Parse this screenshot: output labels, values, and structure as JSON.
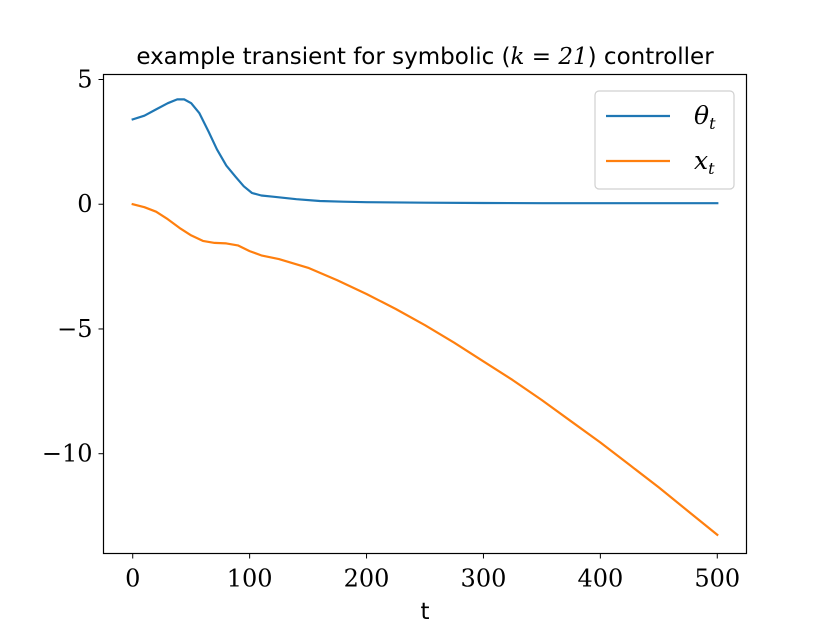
{
  "chart_data": {
    "type": "line",
    "title_parts": {
      "pre": "example transient for symbolic (",
      "math": "k = 21",
      "post": ") controller"
    },
    "xlabel": "t",
    "ylabel": "",
    "xlim": [
      -25,
      525
    ],
    "ylim": [
      -14.0,
      5.2
    ],
    "xticks": [
      0,
      100,
      200,
      300,
      400,
      500
    ],
    "xtick_labels": [
      "0",
      "100",
      "200",
      "300",
      "400",
      "500"
    ],
    "yticks": [
      5,
      0,
      -5,
      -10
    ],
    "ytick_labels": [
      "5",
      "0",
      "−5",
      "−10"
    ],
    "grid": false,
    "legend_position": "top-right",
    "series": [
      {
        "name": "θ",
        "subscript": "t",
        "color": "#1f77b4",
        "x": [
          0,
          10,
          20,
          30,
          38,
          44,
          50,
          57,
          65,
          72,
          80,
          88,
          95,
          102,
          110,
          120,
          140,
          160,
          180,
          200,
          250,
          300,
          350,
          400,
          450,
          500
        ],
        "y": [
          3.4,
          3.55,
          3.8,
          4.05,
          4.2,
          4.2,
          4.05,
          3.65,
          2.9,
          2.2,
          1.55,
          1.1,
          0.72,
          0.45,
          0.35,
          0.3,
          0.2,
          0.13,
          0.1,
          0.08,
          0.06,
          0.05,
          0.04,
          0.04,
          0.04,
          0.04
        ]
      },
      {
        "name": "x",
        "subscript": "t",
        "color": "#ff7f0e",
        "x": [
          0,
          10,
          20,
          30,
          40,
          50,
          60,
          70,
          80,
          90,
          100,
          110,
          125,
          150,
          175,
          200,
          225,
          250,
          275,
          300,
          325,
          350,
          375,
          400,
          425,
          450,
          475,
          500
        ],
        "y": [
          0.0,
          -0.12,
          -0.3,
          -0.6,
          -0.95,
          -1.25,
          -1.47,
          -1.55,
          -1.57,
          -1.65,
          -1.88,
          -2.05,
          -2.2,
          -2.55,
          -3.05,
          -3.6,
          -4.2,
          -4.85,
          -5.55,
          -6.3,
          -7.05,
          -7.85,
          -8.7,
          -9.55,
          -10.45,
          -11.35,
          -12.3,
          -13.25
        ]
      }
    ]
  }
}
